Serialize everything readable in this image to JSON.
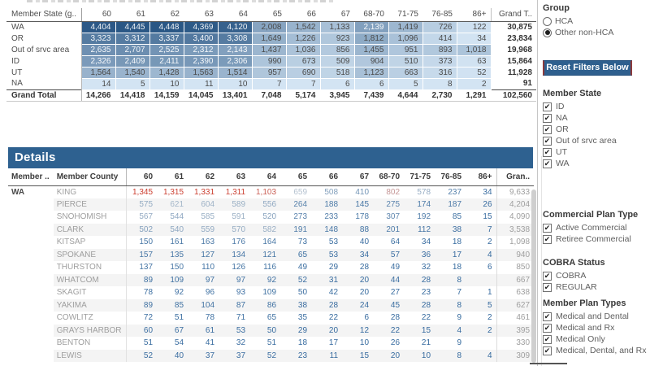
{
  "colors": {
    "summary_bg_low": "#d3e4f3",
    "summary_bg_high": "#2a5785",
    "diverging_blue": "#34699e",
    "diverging_center": "#c3ccd5",
    "diverging_red": "#cc3d2e",
    "details_bar_bg": "#2e6190",
    "button_bg": "#2e5f8e",
    "button_border": "#8c3a3c"
  },
  "summary_table": {
    "row_header": "Member State (g..",
    "age_columns": [
      "60",
      "61",
      "62",
      "63",
      "64",
      "65",
      "66",
      "67",
      "68-70",
      "71-75",
      "76-85",
      "86+"
    ],
    "grand_column": "Grand T..",
    "rows": [
      {
        "label": "WA",
        "values": [
          "4,404",
          "4,445",
          "4,448",
          "4,369",
          "4,120",
          "2,008",
          "1,542",
          "1,133",
          "2,139",
          "1,419",
          "726",
          "122"
        ],
        "total": "30,875"
      },
      {
        "label": "OR",
        "values": [
          "3,323",
          "3,312",
          "3,337",
          "3,400",
          "3,308",
          "1,649",
          "1,226",
          "923",
          "1,812",
          "1,096",
          "414",
          "34"
        ],
        "total": "23,834"
      },
      {
        "label": "Out of srvc area",
        "values": [
          "2,635",
          "2,707",
          "2,525",
          "2,312",
          "2,143",
          "1,437",
          "1,036",
          "856",
          "1,455",
          "951",
          "893",
          "1,018"
        ],
        "total": "19,968"
      },
      {
        "label": "ID",
        "values": [
          "2,326",
          "2,409",
          "2,411",
          "2,390",
          "2,306",
          "990",
          "673",
          "509",
          "904",
          "510",
          "373",
          "63"
        ],
        "total": "15,864"
      },
      {
        "label": "UT",
        "values": [
          "1,564",
          "1,540",
          "1,428",
          "1,563",
          "1,514",
          "957",
          "690",
          "518",
          "1,123",
          "663",
          "316",
          "52"
        ],
        "total": "11,928"
      },
      {
        "label": "NA",
        "values": [
          "14",
          "5",
          "10",
          "11",
          "10",
          "7",
          "7",
          "6",
          "6",
          "5",
          "8",
          "2"
        ],
        "total": "91"
      }
    ],
    "grand_total_row": {
      "label": "Grand Total",
      "values": [
        "14,266",
        "14,418",
        "14,159",
        "14,045",
        "13,401",
        "7,048",
        "5,174",
        "3,945",
        "7,439",
        "4,644",
        "2,730",
        "1,291"
      ],
      "total": "102,560"
    }
  },
  "details": {
    "title": "Details",
    "state_header": "Member ..",
    "county_header": "Member County",
    "age_columns": [
      "60",
      "61",
      "62",
      "63",
      "64",
      "65",
      "66",
      "67",
      "68-70",
      "71-75",
      "76-85",
      "86+"
    ],
    "grand_column": "Gran..",
    "state_label": "WA",
    "rows": [
      {
        "county": "KING",
        "values": [
          "1,345",
          "1,315",
          "1,331",
          "1,311",
          "1,103",
          "659",
          "508",
          "410",
          "802",
          "578",
          "237",
          "34"
        ],
        "total": "9,633"
      },
      {
        "county": "PIERCE",
        "values": [
          "575",
          "621",
          "604",
          "589",
          "556",
          "264",
          "188",
          "145",
          "275",
          "174",
          "187",
          "26"
        ],
        "total": "4,204"
      },
      {
        "county": "SNOHOMISH",
        "values": [
          "567",
          "544",
          "585",
          "591",
          "520",
          "273",
          "233",
          "178",
          "307",
          "192",
          "85",
          "15"
        ],
        "total": "4,090"
      },
      {
        "county": "CLARK",
        "values": [
          "502",
          "540",
          "559",
          "570",
          "582",
          "191",
          "148",
          "88",
          "201",
          "112",
          "38",
          "7"
        ],
        "total": "3,538"
      },
      {
        "county": "KITSAP",
        "values": [
          "150",
          "161",
          "163",
          "176",
          "164",
          "73",
          "53",
          "40",
          "64",
          "34",
          "18",
          "2"
        ],
        "total": "1,098"
      },
      {
        "county": "SPOKANE",
        "values": [
          "157",
          "135",
          "127",
          "134",
          "121",
          "65",
          "53",
          "34",
          "57",
          "36",
          "17",
          "4"
        ],
        "total": "940"
      },
      {
        "county": "THURSTON",
        "values": [
          "137",
          "150",
          "110",
          "126",
          "116",
          "49",
          "29",
          "28",
          "49",
          "32",
          "18",
          "6"
        ],
        "total": "850"
      },
      {
        "county": "WHATCOM",
        "values": [
          "89",
          "109",
          "97",
          "97",
          "92",
          "52",
          "31",
          "20",
          "44",
          "28",
          "8",
          ""
        ],
        "total": "667"
      },
      {
        "county": "SKAGIT",
        "values": [
          "78",
          "92",
          "96",
          "93",
          "109",
          "50",
          "42",
          "20",
          "27",
          "23",
          "7",
          "1"
        ],
        "total": "638"
      },
      {
        "county": "YAKIMA",
        "values": [
          "89",
          "85",
          "104",
          "87",
          "86",
          "38",
          "28",
          "24",
          "45",
          "28",
          "8",
          "5"
        ],
        "total": "627"
      },
      {
        "county": "COWLITZ",
        "values": [
          "72",
          "51",
          "78",
          "71",
          "65",
          "35",
          "22",
          "6",
          "28",
          "22",
          "9",
          "2"
        ],
        "total": "461"
      },
      {
        "county": "GRAYS HARBOR",
        "values": [
          "60",
          "67",
          "61",
          "53",
          "50",
          "29",
          "20",
          "12",
          "22",
          "15",
          "4",
          "2"
        ],
        "total": "395"
      },
      {
        "county": "BENTON",
        "values": [
          "51",
          "54",
          "41",
          "32",
          "51",
          "18",
          "17",
          "10",
          "26",
          "21",
          "9",
          ""
        ],
        "total": "330"
      },
      {
        "county": "LEWIS",
        "values": [
          "52",
          "40",
          "37",
          "37",
          "52",
          "23",
          "11",
          "15",
          "20",
          "10",
          "8",
          "4"
        ],
        "total": "309"
      }
    ]
  },
  "sidebar": {
    "group": {
      "label": "Group",
      "options": [
        {
          "label": "HCA",
          "selected": false
        },
        {
          "label": "Other non-HCA",
          "selected": true
        }
      ]
    },
    "reset_button": "Reset Filters Below",
    "member_state": {
      "label": "Member State",
      "options": [
        "ID",
        "NA",
        "OR",
        "Out of srvc area",
        "UT",
        "WA"
      ]
    },
    "commercial_plan_type": {
      "label": "Commercial Plan Type",
      "options": [
        "Active Commercial",
        "Retiree Commercial"
      ]
    },
    "cobra_status": {
      "label": "COBRA Status",
      "options": [
        "COBRA",
        "REGULAR"
      ]
    },
    "member_plan_types": {
      "label": "Member Plan Types",
      "options": [
        "Medical and Dental",
        "Medical and Rx",
        "Medical Only",
        "Medical, Dental, and Rx"
      ]
    }
  }
}
